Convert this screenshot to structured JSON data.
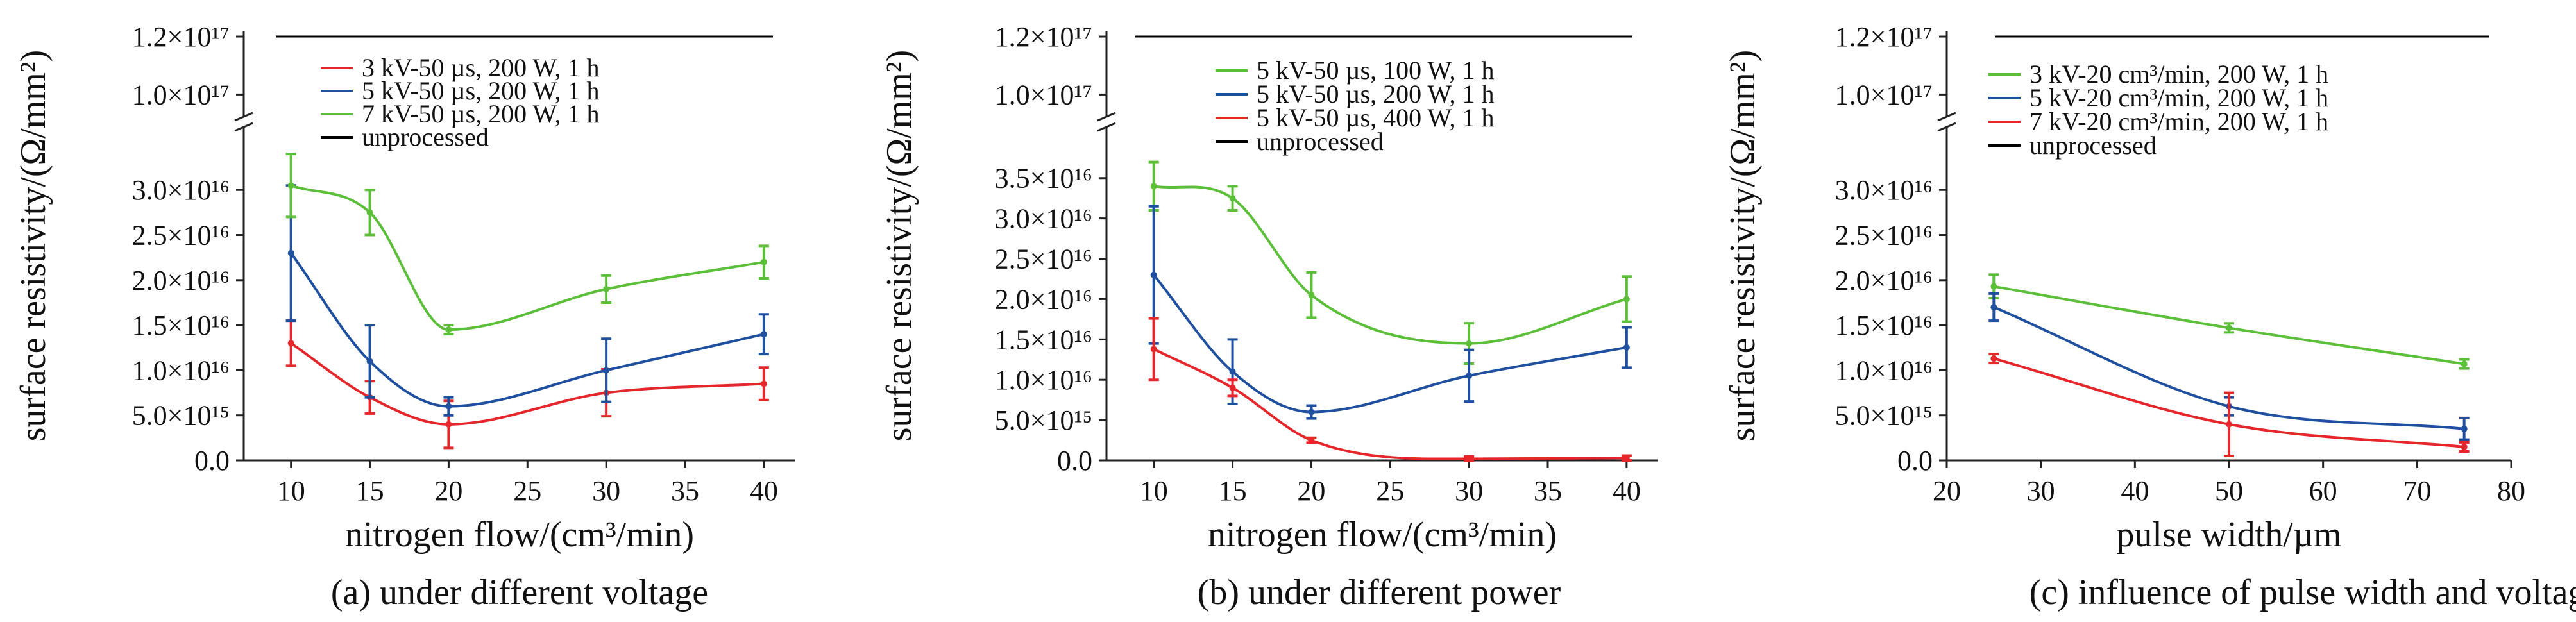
{
  "chart_data": [
    {
      "type": "line",
      "caption": "(a) under different voltage",
      "xlabel": "nitrogen flow/(cm³/min)",
      "ylabel": "surface resistivity/(Ω/mm²)",
      "xlim": [
        7,
        42
      ],
      "ylim": [
        0,
        3.4e+16
      ],
      "xticks": [
        10,
        15,
        20,
        25,
        30,
        35,
        40
      ],
      "xtick_labels": [
        "10",
        "15",
        "20",
        "25",
        "30",
        "35",
        "40"
      ],
      "yticks": [
        0,
        5000000000000000.0,
        1e+16,
        1.5e+16,
        2e+16,
        2.5e+16,
        3e+16
      ],
      "ytick_labels": [
        "0.0",
        "5.0×10¹⁵",
        "1.0×10¹⁶",
        "1.5×10¹⁶",
        "2.0×10¹⁶",
        "2.5×10¹⁶",
        "3.0×10¹⁶"
      ],
      "upper_ticks": [
        1e+17,
        1.2e+17
      ],
      "upper_tick_labels": [
        "1.0×10¹⁷",
        "1.2×10¹⁷"
      ],
      "upper_ylim": [
        9.5e+16,
        1.22e+17
      ],
      "series": [
        {
          "name": "3 kV-50 µs, 200 W, 1 h",
          "color": "#e5262b",
          "x": [
            10,
            15,
            20,
            30,
            40
          ],
          "y": [
            1.3e+16,
            7000000000000000.0,
            4000000000000000.0,
            7500000000000000.0,
            8500000000000000.0
          ],
          "err": [
            2500000000000000.0,
            1800000000000000.0,
            2600000000000000.0,
            2600000000000000.0,
            1800000000000000.0
          ]
        },
        {
          "name": "5 kV-50 µs, 200 W, 1 h",
          "color": "#1f4f9f",
          "x": [
            10,
            15,
            20,
            30,
            40
          ],
          "y": [
            2.3e+16,
            1.1e+16,
            6000000000000000.0,
            1e+16,
            1.4e+16
          ],
          "err": [
            7500000000000000.0,
            4000000000000000.0,
            1000000000000000.0,
            3500000000000000.0,
            2200000000000000.0
          ]
        },
        {
          "name": "7 kV-50 µs, 200 W, 1 h",
          "color": "#5cbf3a",
          "x": [
            10,
            15,
            20,
            30,
            40
          ],
          "y": [
            3.05e+16,
            2.75e+16,
            1.45e+16,
            1.9e+16,
            2.2e+16
          ],
          "err": [
            3500000000000000.0,
            2500000000000000.0,
            500000000000000.0,
            1500000000000000.0,
            1800000000000000.0
          ]
        }
      ],
      "reference": {
        "name": "unprocessed",
        "y": 1.2e+17,
        "color": "#000000"
      }
    },
    {
      "type": "line",
      "caption": "(b) under different power",
      "xlabel": "nitrogen flow/(cm³/min)",
      "ylabel": "surface resistivity/(Ω/mm²)",
      "xlim": [
        7,
        42
      ],
      "ylim": [
        0,
        3.8e+16
      ],
      "xticks": [
        10,
        15,
        20,
        25,
        30,
        35,
        40
      ],
      "xtick_labels": [
        "10",
        "15",
        "20",
        "25",
        "30",
        "35",
        "40"
      ],
      "yticks": [
        0,
        5000000000000000.0,
        1e+16,
        1.5e+16,
        2e+16,
        2.5e+16,
        3e+16,
        3.5e+16
      ],
      "ytick_labels": [
        "0.0",
        "5.0×10¹⁵",
        "1.0×10¹⁶",
        "1.5×10¹⁶",
        "2.0×10¹⁶",
        "2.5×10¹⁶",
        "3.0×10¹⁶",
        "3.5×10¹⁶"
      ],
      "upper_ticks": [
        1e+17,
        1.2e+17
      ],
      "upper_tick_labels": [
        "1.0×10¹⁷",
        "1.2×10¹⁷"
      ],
      "upper_ylim": [
        9.5e+16,
        1.22e+17
      ],
      "series": [
        {
          "name": "5 kV-50 µs, 100 W, 1 h",
          "color": "#5cbf3a",
          "x": [
            10,
            15,
            20,
            30,
            40
          ],
          "y": [
            3.4e+16,
            3.25e+16,
            2.05e+16,
            1.45e+16,
            2e+16
          ],
          "err": [
            3000000000000000.0,
            1500000000000000.0,
            2800000000000000.0,
            2500000000000000.0,
            2800000000000000.0
          ]
        },
        {
          "name": "5 kV-50 µs, 200 W, 1 h",
          "color": "#1f4f9f",
          "x": [
            10,
            15,
            20,
            30,
            40
          ],
          "y": [
            2.3e+16,
            1.1e+16,
            6000000000000000.0,
            1.05e+16,
            1.4e+16
          ],
          "err": [
            8500000000000000.0,
            4000000000000000.0,
            800000000000000.0,
            3200000000000000.0,
            2500000000000000.0
          ]
        },
        {
          "name": "5 kV-50 µs, 400 W, 1 h",
          "color": "#e5262b",
          "x": [
            10,
            15,
            20,
            30,
            40
          ],
          "y": [
            1.38e+16,
            9000000000000000.0,
            2500000000000000.0,
            200000000000000.0,
            300000000000000.0
          ],
          "err": [
            3800000000000000.0,
            1000000000000000.0,
            300000000000000.0,
            300000000000000.0,
            300000000000000.0
          ]
        }
      ],
      "reference": {
        "name": "unprocessed",
        "y": 1.2e+17,
        "color": "#000000"
      }
    },
    {
      "type": "line",
      "caption": "(c) influence of pulse width and voltage",
      "xlabel": "pulse width/µm",
      "ylabel": "surface resistivity/(Ω/mm²)",
      "xlim": [
        20,
        80
      ],
      "ylim": [
        0,
        3.4e+16
      ],
      "xticks": [
        20,
        30,
        40,
        50,
        60,
        70,
        80
      ],
      "xtick_labels": [
        "20",
        "30",
        "40",
        "50",
        "60",
        "70",
        "80"
      ],
      "yticks": [
        0,
        5000000000000000.0,
        1e+16,
        1.5e+16,
        2e+16,
        2.5e+16,
        3e+16
      ],
      "ytick_labels": [
        "0.0",
        "5.0×10¹⁵",
        "1.0×10¹⁶",
        "1.5×10¹⁶",
        "2.0×10¹⁶",
        "2.5×10¹⁶",
        "3.0×10¹⁶"
      ],
      "upper_ticks": [
        1e+17,
        1.2e+17
      ],
      "upper_tick_labels": [
        "1.0×10¹⁷",
        "1.2×10¹⁷"
      ],
      "upper_ylim": [
        9.5e+16,
        1.22e+17
      ],
      "series": [
        {
          "name": "3 kV-20 cm³/min, 200 W, 1 h",
          "color": "#5cbf3a",
          "x": [
            25,
            50,
            75
          ],
          "y": [
            1.93e+16,
            1.47e+16,
            1.07e+16
          ],
          "err": [
            1300000000000000.0,
            500000000000000.0,
            500000000000000.0
          ]
        },
        {
          "name": "5 kV-20 cm³/min, 200 W, 1 h",
          "color": "#1f4f9f",
          "x": [
            25,
            50,
            75
          ],
          "y": [
            1.7e+16,
            6000000000000000.0,
            3500000000000000.0
          ],
          "err": [
            1500000000000000.0,
            1000000000000000.0,
            1200000000000000.0
          ]
        },
        {
          "name": "7 kV-20 cm³/min, 200 W, 1 h",
          "color": "#e5262b",
          "x": [
            25,
            50,
            75
          ],
          "y": [
            1.13e+16,
            4000000000000000.0,
            1500000000000000.0
          ],
          "err": [
            500000000000000.0,
            3500000000000000.0,
            500000000000000.0
          ]
        }
      ],
      "reference": {
        "name": "unprocessed",
        "y": 1.2e+17,
        "color": "#000000"
      }
    }
  ]
}
